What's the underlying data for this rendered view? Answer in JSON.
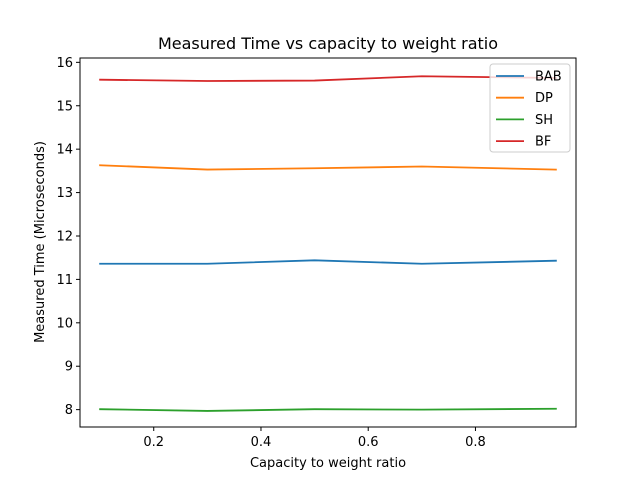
{
  "chart_data": {
    "type": "line",
    "title": "Measured Time vs capacity to weight ratio",
    "xlabel": "Capacity to weight ratio",
    "ylabel": "Measured Time (Microseconds)",
    "x": [
      0.1,
      0.3,
      0.5,
      0.7,
      0.95
    ],
    "xlim": [
      0.0625,
      0.9875
    ],
    "ylim": [
      7.6,
      16.1
    ],
    "xticks": [
      0.2,
      0.4,
      0.6,
      0.8
    ],
    "xtick_labels": [
      "0.2",
      "0.4",
      "0.6",
      "0.8"
    ],
    "yticks": [
      8,
      9,
      10,
      11,
      12,
      13,
      14,
      15,
      16
    ],
    "ytick_labels": [
      "8",
      "9",
      "10",
      "11",
      "12",
      "13",
      "14",
      "15",
      "16"
    ],
    "grid": false,
    "legend_position": "top-right",
    "series": [
      {
        "name": "BAB",
        "color": "#1f77b4",
        "values": [
          11.36,
          11.36,
          11.44,
          11.36,
          11.43
        ]
      },
      {
        "name": "DP",
        "color": "#ff7f0e",
        "values": [
          13.63,
          13.53,
          13.56,
          13.6,
          13.53
        ]
      },
      {
        "name": "SH",
        "color": "#2ca02c",
        "values": [
          8.01,
          7.97,
          8.01,
          8.0,
          8.02
        ]
      },
      {
        "name": "BF",
        "color": "#d62728",
        "values": [
          15.6,
          15.57,
          15.58,
          15.68,
          15.64
        ]
      }
    ]
  }
}
